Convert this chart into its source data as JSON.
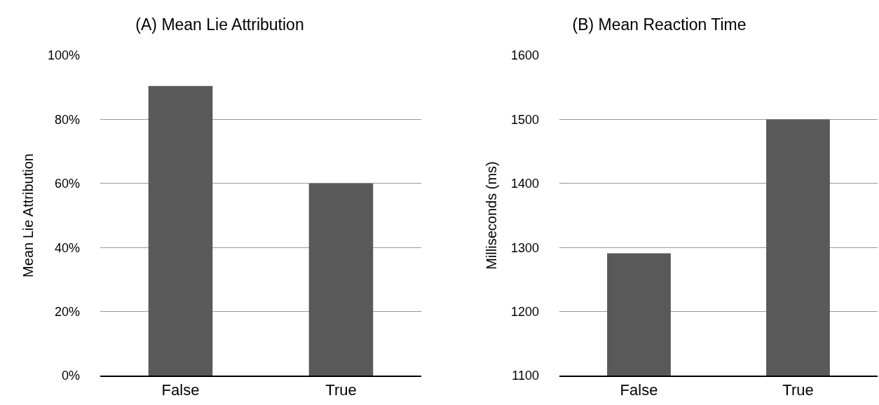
{
  "chart_data": [
    {
      "type": "bar",
      "title": "(A) Mean Lie Attribution",
      "ylabel": "Mean Lie Attribution",
      "categories": [
        "False",
        "True"
      ],
      "values": [
        90.4,
        60
      ],
      "color": "#595959",
      "ylim": [
        0,
        100
      ],
      "yticks": [
        {
          "value": 0,
          "label": "0%"
        },
        {
          "value": 20,
          "label": "20%"
        },
        {
          "value": 40,
          "label": "40%"
        },
        {
          "value": 60,
          "label": "60%"
        },
        {
          "value": 80,
          "label": "80%"
        },
        {
          "value": 100,
          "label": "100%"
        }
      ],
      "grid": "y"
    },
    {
      "type": "bar",
      "title": "(B) Mean Reaction Time",
      "ylabel": "Milliseconds (ms)",
      "categories": [
        "False",
        "True"
      ],
      "values": [
        1291,
        1500
      ],
      "color": "#595959",
      "ylim": [
        1100,
        1600
      ],
      "yticks": [
        1100,
        1200,
        1300,
        1400,
        1500,
        1600
      ],
      "grid": "y"
    }
  ]
}
